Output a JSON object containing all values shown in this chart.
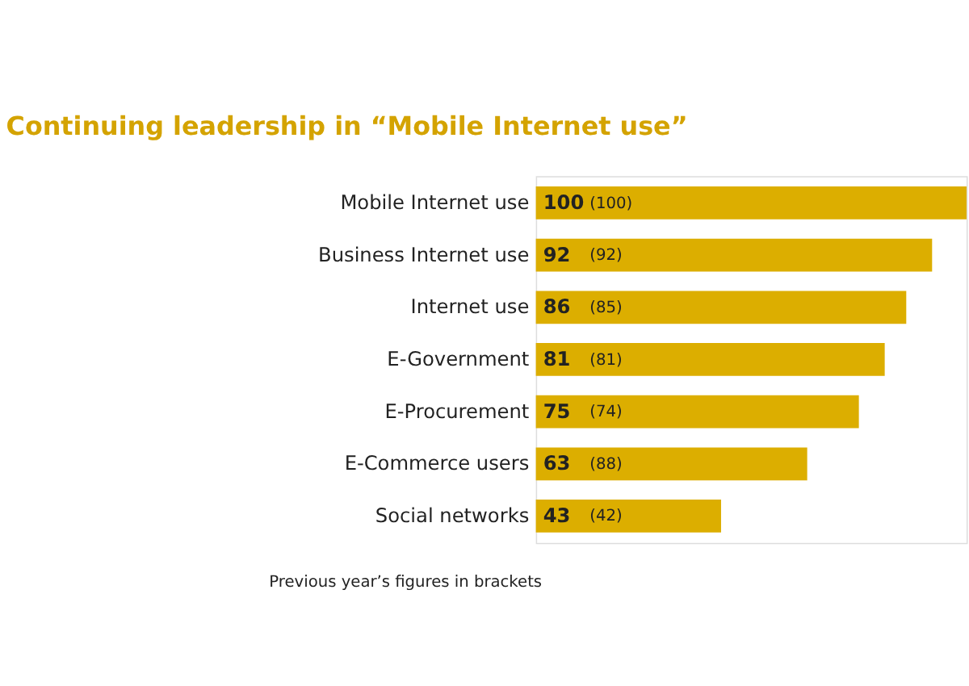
{
  "chart_data": {
    "type": "bar",
    "orientation": "horizontal",
    "title": "Continuing leadership in “Mobile Internet use”",
    "categories": [
      "Mobile Internet use",
      "Business Internet use",
      "Internet use",
      "E-Government",
      "E-Procurement",
      "E-Commerce users",
      "Social networks"
    ],
    "values": [
      100,
      92,
      86,
      81,
      75,
      63,
      43
    ],
    "data_labels": true,
    "color": "#dcae00",
    "tick_labels": "y",
    "annotations": [
      {
        "text": "(100)",
        "y": "Mobile Internet use"
      },
      {
        "text": "(92)",
        "y": "Business Internet use"
      },
      {
        "text": "(85)",
        "y": "Internet use"
      },
      {
        "text": "(81)",
        "y": "E-Government"
      },
      {
        "text": "(74)",
        "y": "E-Procurement"
      },
      {
        "text": "(88)",
        "y": "E-Commerce users"
      },
      {
        "text": "(42)",
        "y": "Social networks"
      },
      "Previous year’s figures in brackets"
    ]
  }
}
